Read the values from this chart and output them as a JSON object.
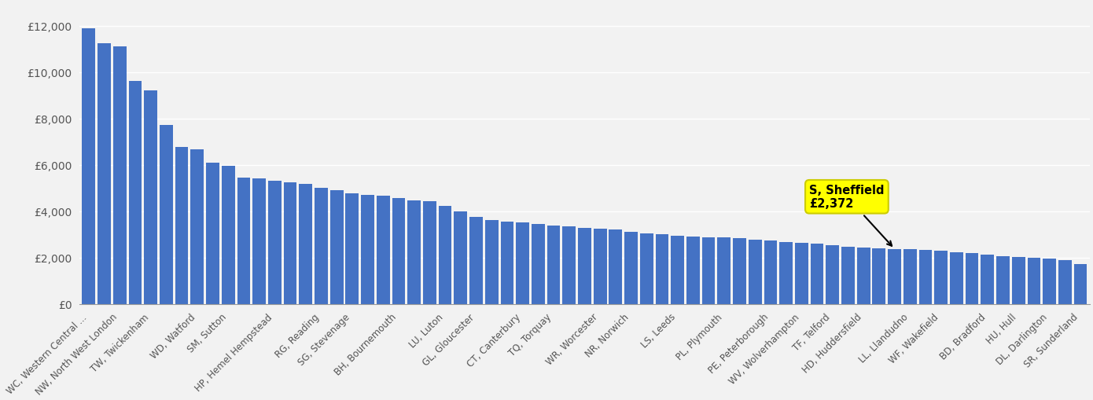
{
  "bar_color": "#4472C4",
  "background_color": "#F2F2F2",
  "grid_color": "#FFFFFF",
  "annotation_bg": "#FFFF00",
  "annotation_text_line1": "S, Sheffield",
  "annotation_text_line2": "£2,372",
  "ylim": [
    0,
    13000
  ],
  "yticks": [
    0,
    2000,
    4000,
    6000,
    8000,
    10000,
    12000
  ],
  "ytick_labels": [
    "£0",
    "£2,000",
    "£4,000",
    "£6,000",
    "£8,000",
    "£10,000",
    "£12,000"
  ],
  "bars": [
    {
      "label": "WC, Western Central ...",
      "value": 11900
    },
    {
      "label": "",
      "value": 11250
    },
    {
      "label": "NW, North West London",
      "value": 11100
    },
    {
      "label": "",
      "value": 9600
    },
    {
      "label": "TW, Twickenham",
      "value": 9200
    },
    {
      "label": "",
      "value": 7700
    },
    {
      "label": "",
      "value": 6750
    },
    {
      "label": "WD, Watford",
      "value": 6650
    },
    {
      "label": "",
      "value": 6100
    },
    {
      "label": "SM, Sutton",
      "value": 5950
    },
    {
      "label": "",
      "value": 5450
    },
    {
      "label": "",
      "value": 5400
    },
    {
      "label": "HP, Hemel Hempstead",
      "value": 5310
    },
    {
      "label": "",
      "value": 5230
    },
    {
      "label": "",
      "value": 5180
    },
    {
      "label": "RG, Reading",
      "value": 5000
    },
    {
      "label": "",
      "value": 4900
    },
    {
      "label": "SG, Stevenage",
      "value": 4780
    },
    {
      "label": "",
      "value": 4700
    },
    {
      "label": "",
      "value": 4650
    },
    {
      "label": "BH, Bournemouth",
      "value": 4560
    },
    {
      "label": "",
      "value": 4470
    },
    {
      "label": "",
      "value": 4420
    },
    {
      "label": "LU, Luton",
      "value": 4220
    },
    {
      "label": "",
      "value": 3980
    },
    {
      "label": "GL, Gloucester",
      "value": 3760
    },
    {
      "label": "",
      "value": 3600
    },
    {
      "label": "",
      "value": 3540
    },
    {
      "label": "CT, Canterbury",
      "value": 3500
    },
    {
      "label": "",
      "value": 3460
    },
    {
      "label": "TQ, Torquay",
      "value": 3380
    },
    {
      "label": "",
      "value": 3340
    },
    {
      "label": "",
      "value": 3280
    },
    {
      "label": "WR, Worcester",
      "value": 3250
    },
    {
      "label": "",
      "value": 3200
    },
    {
      "label": "NR, Norwich",
      "value": 3100
    },
    {
      "label": "",
      "value": 3030
    },
    {
      "label": "",
      "value": 2990
    },
    {
      "label": "LS, Leeds",
      "value": 2940
    },
    {
      "label": "",
      "value": 2900
    },
    {
      "label": "",
      "value": 2880
    },
    {
      "label": "PL, Plymouth",
      "value": 2860
    },
    {
      "label": "",
      "value": 2820
    },
    {
      "label": "",
      "value": 2760
    },
    {
      "label": "PE, Peterborough",
      "value": 2720
    },
    {
      "label": "",
      "value": 2680
    },
    {
      "label": "WV, Wolverhampton",
      "value": 2640
    },
    {
      "label": "",
      "value": 2580
    },
    {
      "label": "TF, Telford",
      "value": 2530
    },
    {
      "label": "",
      "value": 2470
    },
    {
      "label": "HD, Huddersfield",
      "value": 2430
    },
    {
      "label": "",
      "value": 2400
    },
    {
      "label": "",
      "value": 2372
    },
    {
      "label": "LL, Llandudno",
      "value": 2350
    },
    {
      "label": "",
      "value": 2330
    },
    {
      "label": "WF, Wakefield",
      "value": 2280
    },
    {
      "label": "",
      "value": 2230
    },
    {
      "label": "",
      "value": 2180
    },
    {
      "label": "BD, Bradford",
      "value": 2120
    },
    {
      "label": "",
      "value": 2060
    },
    {
      "label": "HU, Hull",
      "value": 2010
    },
    {
      "label": "",
      "value": 1980
    },
    {
      "label": "DL, Darlington",
      "value": 1940
    },
    {
      "label": "",
      "value": 1880
    },
    {
      "label": "SR, Sunderland",
      "value": 1720
    }
  ],
  "sheffield_index": 52,
  "sheffield_value": 2372
}
